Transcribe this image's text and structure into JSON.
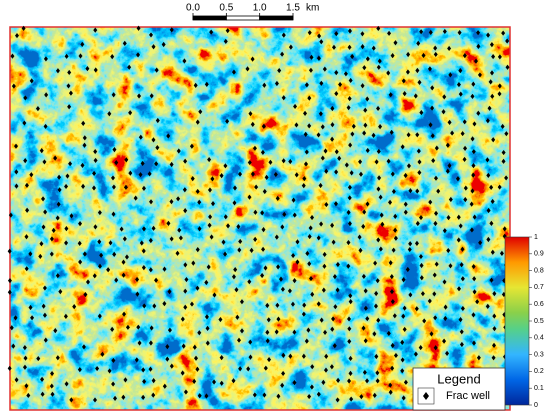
{
  "scale_bar": {
    "ticks": [
      {
        "value": 0,
        "label": "0.0"
      },
      0.5,
      {
        "value": 1,
        "label": "1.0"
      },
      1.5
    ],
    "unit": "km"
  },
  "colorbar": {
    "ticks": [
      0,
      0.1,
      0.2,
      0.3,
      0.4,
      0.5,
      0.6,
      0.7,
      0.8,
      0.9,
      1
    ]
  },
  "legend": {
    "title": "Legend",
    "items": [
      {
        "label": "Frac well"
      }
    ]
  }
}
